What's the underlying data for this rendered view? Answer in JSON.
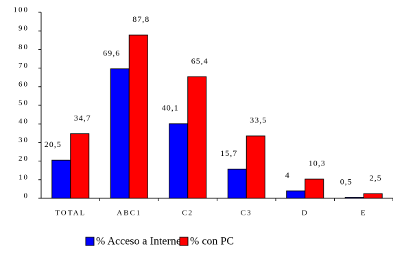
{
  "chart_data": {
    "type": "bar",
    "categories": [
      "TOTAL",
      "ABC1",
      "C2",
      "C3",
      "D",
      "E"
    ],
    "series": [
      {
        "name": "% Acceso a Internet",
        "color": "#0000ff",
        "values": [
          20.5,
          69.6,
          40.1,
          15.7,
          4,
          0.5
        ],
        "value_labels": [
          "20,5",
          "69,6",
          "40,1",
          "15,7",
          "4",
          "0,5"
        ]
      },
      {
        "name": "% con PC",
        "color": "#ff0000",
        "values": [
          34.7,
          87.8,
          65.4,
          33.5,
          10.3,
          2.5
        ],
        "value_labels": [
          "34,7",
          "87,8",
          "65,4",
          "33,5",
          "10,3",
          "2,5"
        ]
      }
    ],
    "ylim": [
      0,
      100
    ],
    "yticks": [
      0,
      10,
      20,
      30,
      40,
      50,
      60,
      70,
      80,
      90,
      100
    ],
    "grid": false
  }
}
